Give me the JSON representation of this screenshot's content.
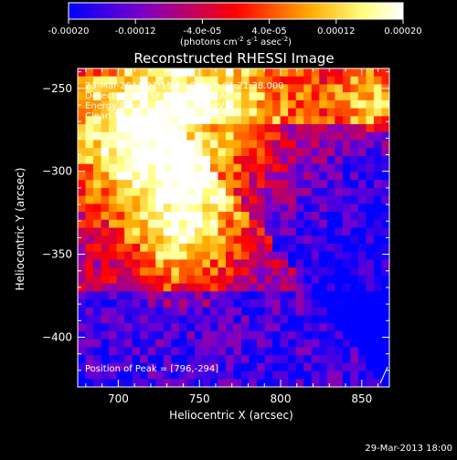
{
  "colorbar": {
    "ticks": [
      "-0.00020",
      "-0.00012",
      "-4.0e-05",
      "4.0e-05",
      "0.00012",
      "0.00020"
    ],
    "tick_values": [
      -0.0002,
      -0.00012,
      -4e-05,
      4e-05,
      0.00012,
      0.0002
    ],
    "range": [
      -0.0002,
      0.0002
    ],
    "units_prefix": "(photons cm",
    "units_sup1": "-2",
    "units_mid": " s",
    "units_sup2": "-1",
    "units_mid2": " asec",
    "units_sup3": "-2",
    "units_suffix": ")",
    "colors": [
      "#0000ff",
      "#7b00c8",
      "#ff0000",
      "#ffaa00",
      "#ffff80",
      "#ffffff"
    ]
  },
  "chart_data": {
    "type": "heatmap",
    "title": "Reconstructed RHESSI Image",
    "xlabel": "Heliocentric X (arcsec)",
    "ylabel": "Heliocentric Y (arcsec)",
    "xlim": [
      675,
      867
    ],
    "ylim": [
      -430,
      -238
    ],
    "x_ticks": [
      700,
      750,
      800,
      850
    ],
    "y_ticks": [
      -400,
      -350,
      -300,
      -250
    ],
    "x_tick_labels": [
      "700",
      "750",
      "800",
      "850"
    ],
    "y_tick_labels": [
      "−400",
      "−350",
      "−300",
      "−250"
    ],
    "peak": [
      796,
      -294
    ],
    "annotations": {
      "line1": "23-Mar-2013 01:15:56.000 to 01:21:38.000",
      "line2": "Detectors: 3F 5F 6F 7F 8F 9F  Att 0",
      "line3": "Energy Range: 25.0 - 50.0 keV",
      "line4": "Clean     Total counts: 6.54E+03",
      "peak_text": "Position of Peak = [796,-294]"
    }
  },
  "footer": {
    "timestamp": "29-Mar-2013 18:00"
  }
}
